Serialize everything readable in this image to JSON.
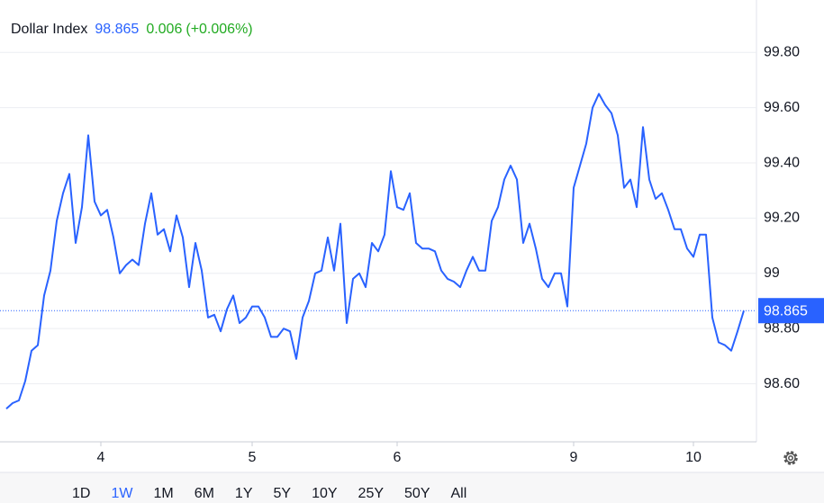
{
  "chart_data": {
    "type": "line",
    "title": "Dollar Index",
    "price": 98.865,
    "change": "0.006",
    "change_pct": "(+0.006%)",
    "x": [
      1,
      2,
      3,
      4,
      5,
      6,
      7,
      8,
      9,
      10,
      11,
      12,
      13,
      14,
      15,
      16,
      17,
      18,
      19,
      20,
      21,
      22,
      23,
      24,
      25,
      26,
      27,
      28,
      29,
      30,
      31,
      32,
      33,
      34,
      35,
      36,
      37,
      38,
      39,
      40,
      41,
      42,
      43,
      44,
      45,
      46,
      47,
      48,
      49,
      50,
      51,
      52,
      53,
      54,
      55,
      56,
      57,
      58,
      59,
      60,
      61,
      62,
      63,
      64,
      65,
      66,
      67,
      68,
      69,
      70,
      71,
      72,
      73,
      74,
      75,
      76,
      77,
      78,
      79,
      80,
      81,
      82,
      83,
      84,
      85,
      86,
      87,
      88,
      89,
      90,
      91,
      92,
      93,
      94,
      95,
      96,
      97,
      98,
      99,
      100,
      101,
      102,
      103,
      104,
      105,
      106,
      107,
      108,
      109,
      110,
      111,
      112,
      113,
      114,
      115,
      116,
      117,
      118
    ],
    "series": [
      {
        "name": "Dollar Index",
        "color": "#2962ff",
        "values": [
          98.51,
          98.53,
          98.54,
          98.61,
          98.72,
          98.74,
          98.92,
          99.01,
          99.19,
          99.29,
          99.36,
          99.11,
          99.24,
          99.5,
          99.26,
          99.21,
          99.23,
          99.13,
          99.0,
          99.03,
          99.05,
          99.03,
          99.18,
          99.29,
          99.14,
          99.16,
          99.08,
          99.21,
          99.13,
          98.95,
          99.11,
          99.01,
          98.84,
          98.85,
          98.79,
          98.87,
          98.92,
          98.82,
          98.84,
          98.88,
          98.88,
          98.84,
          98.77,
          98.77,
          98.8,
          98.79,
          98.69,
          98.84,
          98.9,
          99.0,
          99.01,
          99.13,
          99.01,
          99.18,
          98.82,
          98.98,
          99.0,
          98.95,
          99.11,
          99.08,
          99.14,
          99.37,
          99.24,
          99.23,
          99.29,
          99.11,
          99.09,
          99.09,
          99.08,
          99.01,
          98.98,
          98.97,
          98.95,
          99.01,
          99.06,
          99.01,
          99.01,
          99.19,
          99.24,
          99.34,
          99.39,
          99.34,
          99.11,
          99.18,
          99.09,
          98.98,
          98.95,
          99.0,
          99.0,
          98.88,
          99.31,
          99.39,
          99.47,
          99.6,
          99.65,
          99.61,
          99.58,
          99.5,
          99.31,
          99.34,
          99.24,
          99.53,
          99.34,
          99.27,
          99.29,
          99.23,
          99.16,
          99.16,
          99.09,
          99.06,
          99.14,
          99.14,
          98.84,
          98.75,
          98.74,
          98.72,
          98.79,
          98.865
        ]
      }
    ],
    "xlim": [
      0,
      120
    ],
    "xticks": [
      {
        "value": 16,
        "label": "4"
      },
      {
        "value": 40,
        "label": "5"
      },
      {
        "value": 63,
        "label": "6"
      },
      {
        "value": 91,
        "label": "9"
      },
      {
        "value": 110,
        "label": "10"
      }
    ],
    "ylim": [
      98.39,
      99.99
    ],
    "yticks": [
      {
        "value": 99.8,
        "label": "99.80"
      },
      {
        "value": 99.6,
        "label": "99.60"
      },
      {
        "value": 99.4,
        "label": "99.40"
      },
      {
        "value": 99.2,
        "label": "99.20"
      },
      99,
      {
        "value": 98.8,
        "label": "98.80"
      },
      {
        "value": 98.6,
        "label": "98.60"
      }
    ],
    "grid": true,
    "ranges": [
      "1D",
      "1W",
      "1M",
      "6M",
      "1Y",
      "5Y",
      "10Y",
      "25Y",
      "50Y",
      "All"
    ],
    "selected_range": "1W"
  }
}
